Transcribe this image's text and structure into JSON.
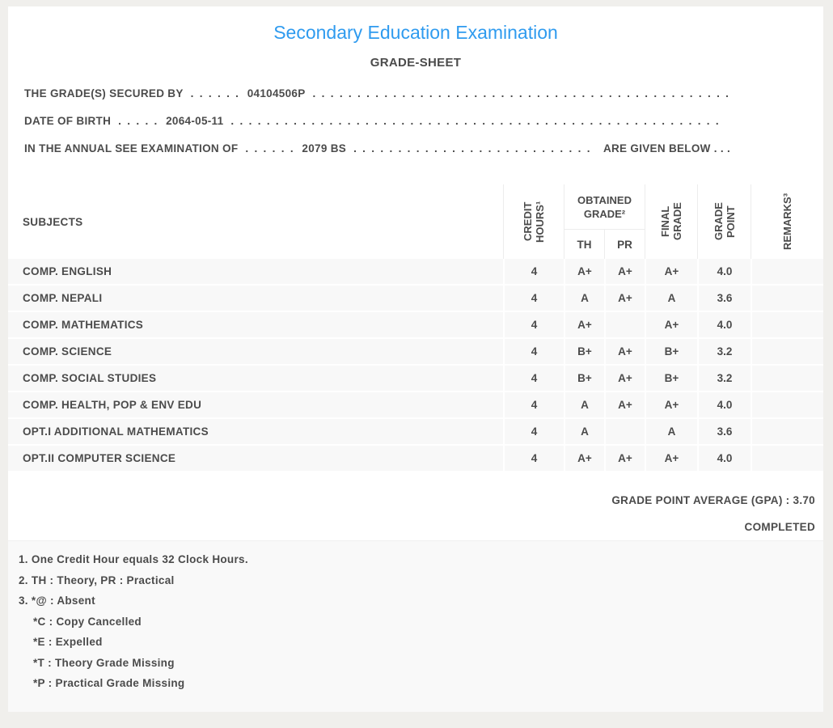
{
  "page": {
    "background_color": "#f0efec",
    "accent_color": "#2f9bef",
    "text_color": "#4b4b4b"
  },
  "header": {
    "title": "Secondary Education Examination",
    "subtitle": "GRADE-SHEET"
  },
  "info_lines": [
    {
      "label": "THE GRADE(S) SECURED BY",
      "leader_dots": ". . . . . .",
      "value": "04104506P",
      "filler_dots": ". . . . . . . . . . . . . . . . . . . . . . . . . . . . . . . . . . . . . . . . . . . . . . . . . . . . . . . . . . . . . . . . . . . . . . . . . . . . . . . .",
      "tail": ""
    },
    {
      "label": "DATE OF BIRTH",
      "leader_dots": ". . . . .",
      "value": "2064-05-11",
      "filler_dots": ". . . . . . . . . . . . . . . . . . . . . . . . . . . . . . . . . . . . . . . . . . . . . . . . . . . . . . . . . . . . . . . . . . . . . . . . . . . . . . . .",
      "tail": ""
    },
    {
      "label": "IN THE ANNUAL SEE EXAMINATION OF",
      "leader_dots": ". . . . . .",
      "value": "2079 BS",
      "filler_dots": ". . . . . . . . . . . . . . . . . . . . . . . . . . . . . . . . . . . . . . . . . . . . . . . . . . . . . . . . . . . . . . . . . . . . . . . . . . . . . . . .",
      "tail": "ARE GIVEN BELOW . . ."
    }
  ],
  "table": {
    "headers": {
      "subjects": "SUBJECTS",
      "credit_hours": "CREDIT HOURS¹",
      "obtained_grade": "OBTAINED GRADE²",
      "th": "TH",
      "pr": "PR",
      "final_grade": "FINAL GRADE",
      "grade_point": "GRADE POINT",
      "remarks": "REMARKS³"
    },
    "rows": [
      {
        "subject": "COMP. ENGLISH",
        "credit": "4",
        "th": "A+",
        "pr": "A+",
        "final": "A+",
        "gp": "4.0",
        "remarks": ""
      },
      {
        "subject": "COMP. NEPALI",
        "credit": "4",
        "th": "A",
        "pr": "A+",
        "final": "A",
        "gp": "3.6",
        "remarks": ""
      },
      {
        "subject": "COMP. MATHEMATICS",
        "credit": "4",
        "th": "A+",
        "pr": "",
        "final": "A+",
        "gp": "4.0",
        "remarks": ""
      },
      {
        "subject": "COMP. SCIENCE",
        "credit": "4",
        "th": "B+",
        "pr": "A+",
        "final": "B+",
        "gp": "3.2",
        "remarks": ""
      },
      {
        "subject": "COMP. SOCIAL STUDIES",
        "credit": "4",
        "th": "B+",
        "pr": "A+",
        "final": "B+",
        "gp": "3.2",
        "remarks": ""
      },
      {
        "subject": "COMP. HEALTH, POP & ENV EDU",
        "credit": "4",
        "th": "A",
        "pr": "A+",
        "final": "A+",
        "gp": "4.0",
        "remarks": ""
      },
      {
        "subject": "OPT.I ADDITIONAL MATHEMATICS",
        "credit": "4",
        "th": "A",
        "pr": "",
        "final": "A",
        "gp": "3.6",
        "remarks": ""
      },
      {
        "subject": "OPT.II COMPUTER SCIENCE",
        "credit": "4",
        "th": "A+",
        "pr": "A+",
        "final": "A+",
        "gp": "4.0",
        "remarks": ""
      }
    ]
  },
  "summary": {
    "gpa_line": "GRADE POINT AVERAGE (GPA) : 3.70",
    "status": "COMPLETED"
  },
  "footnotes": [
    {
      "text": "1. One Credit Hour equals 32 Clock Hours.",
      "indent": false
    },
    {
      "text": "2. TH : Theory, PR : Practical",
      "indent": false
    },
    {
      "text": "3. *@ : Absent",
      "indent": false
    },
    {
      "text": "*C : Copy Cancelled",
      "indent": true
    },
    {
      "text": "*E : Expelled",
      "indent": true
    },
    {
      "text": "*T : Theory Grade Missing",
      "indent": true
    },
    {
      "text": "*P : Practical Grade Missing",
      "indent": true
    }
  ]
}
